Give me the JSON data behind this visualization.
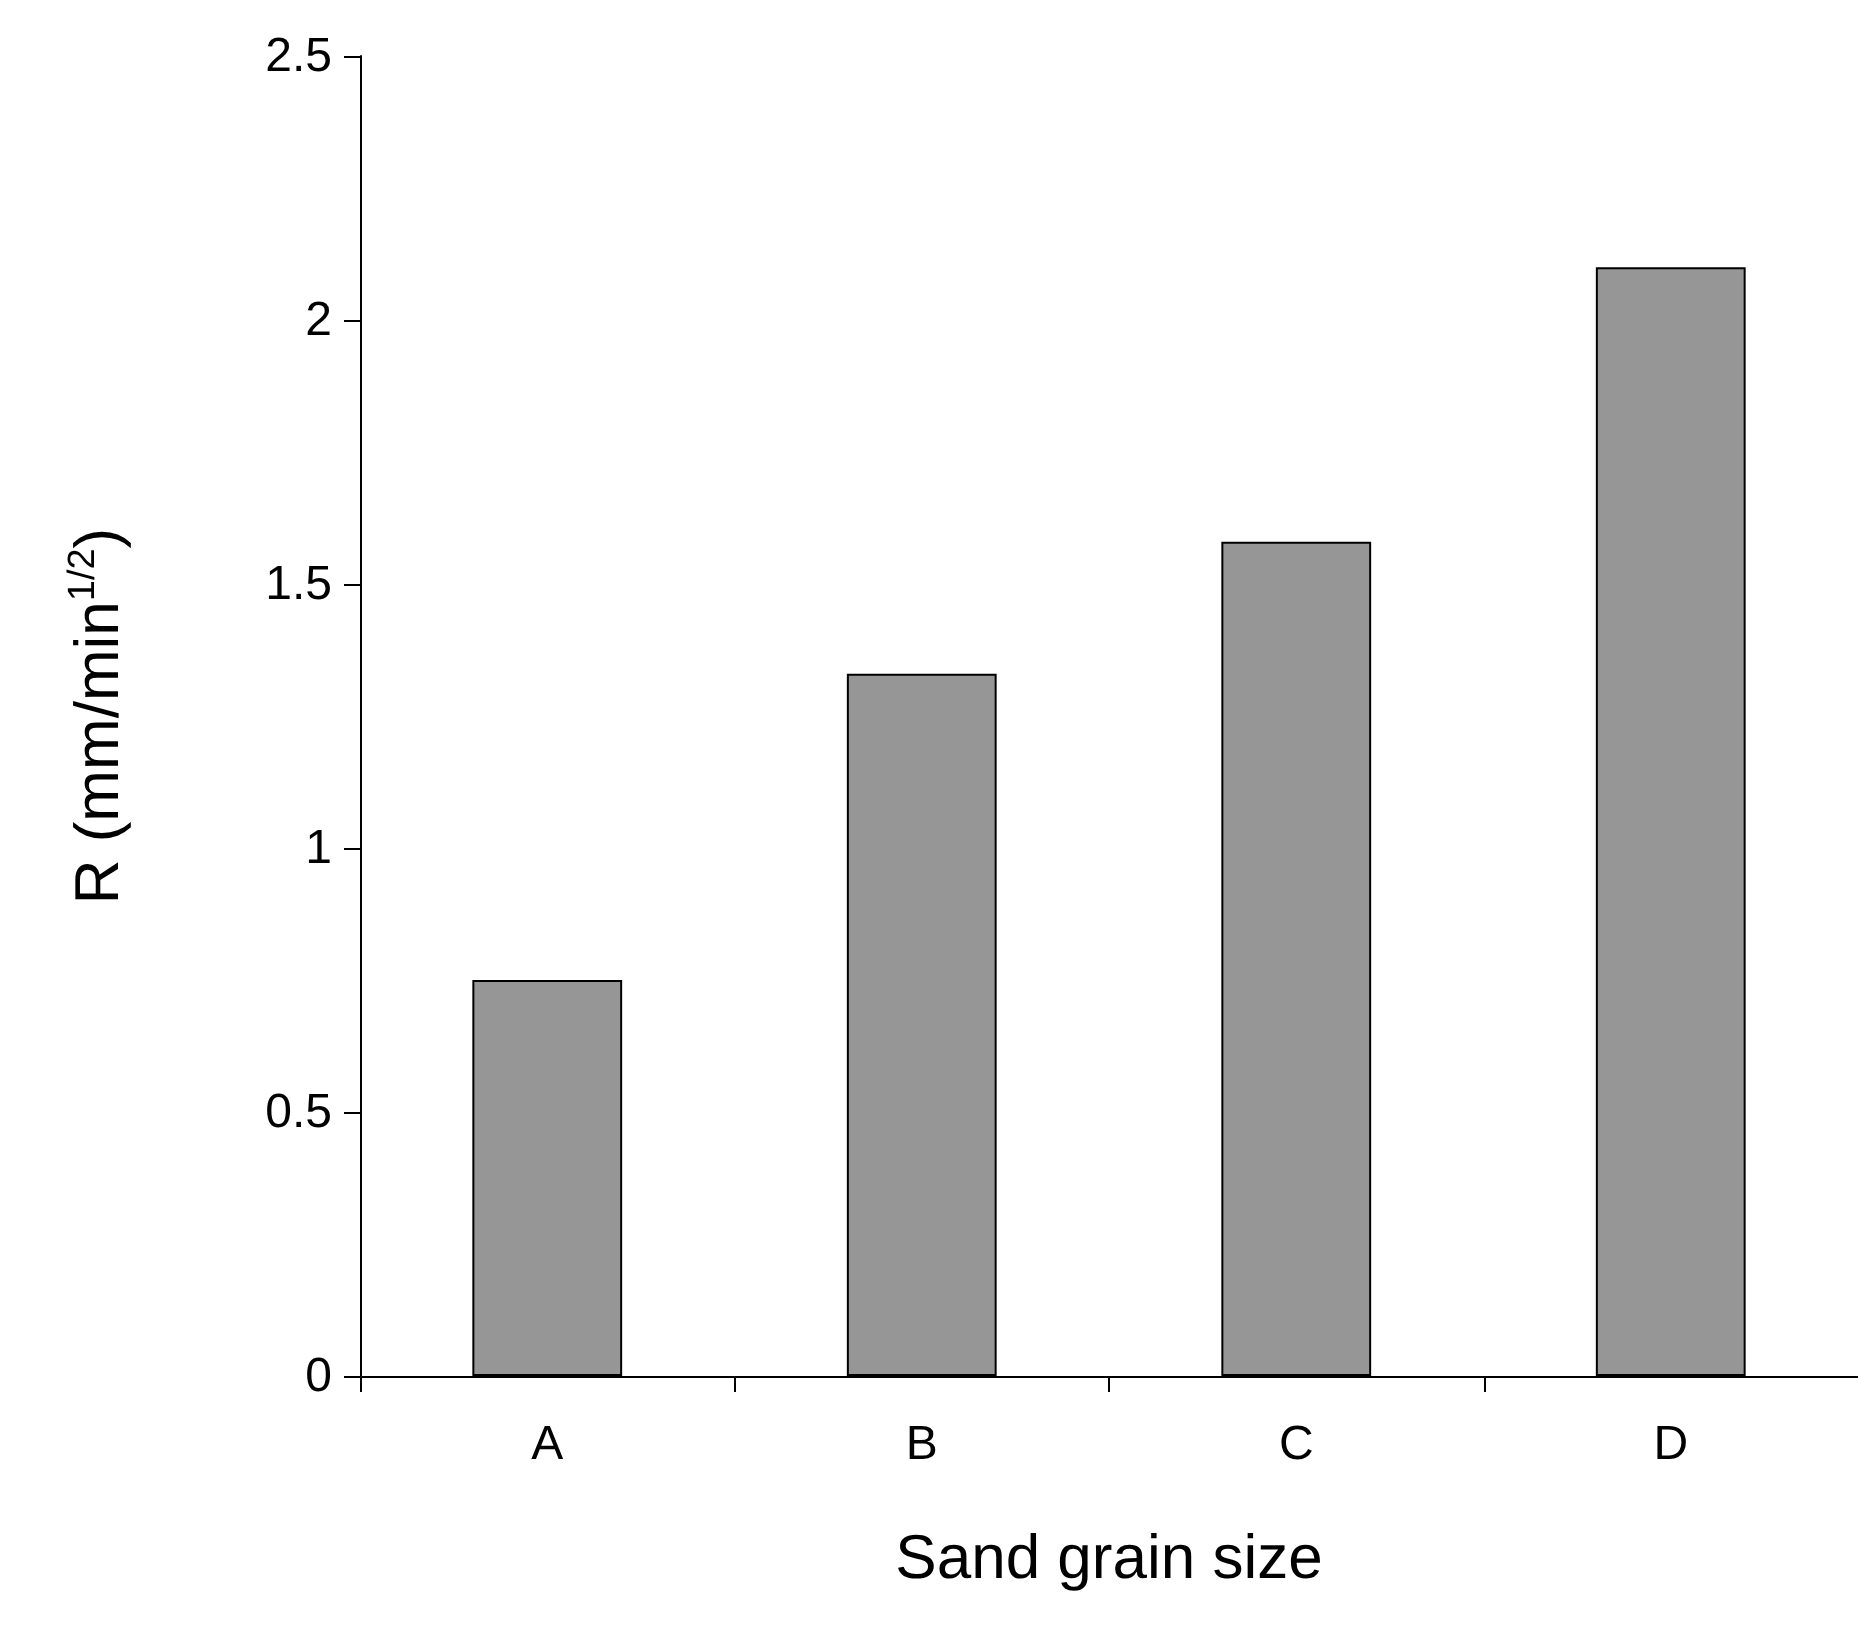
{
  "chart_data": {
    "type": "bar",
    "xlabel": "Sand grain size",
    "ylabel": "R (mm/min$^{1/2}$)",
    "categories": [
      "A",
      "B",
      "C",
      "D"
    ],
    "values": [
      0.75,
      1.33,
      1.58,
      2.1
    ],
    "color": "#969696",
    "ylim": [
      0,
      2.5
    ],
    "yticks": [
      0,
      0.5,
      1,
      1.5,
      2,
      2.5
    ],
    "grid": false
  }
}
